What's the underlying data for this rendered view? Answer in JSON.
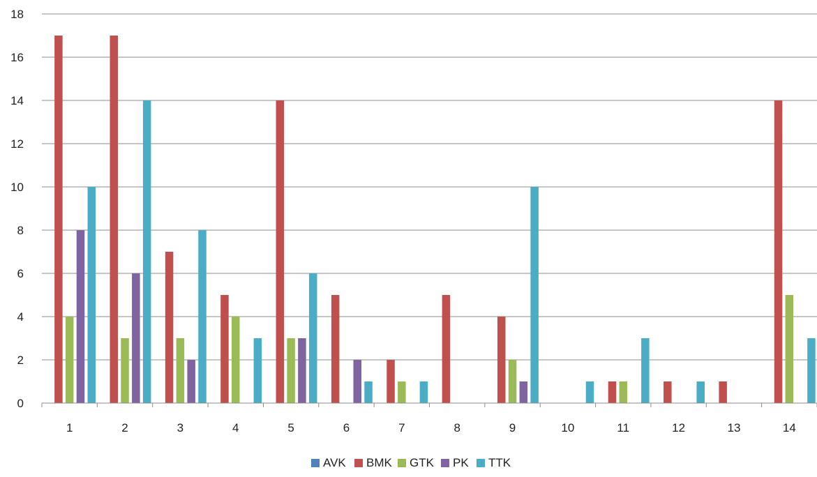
{
  "chart_data": {
    "type": "bar",
    "title": "",
    "xlabel": "",
    "ylabel": "",
    "categories": [
      "1",
      "2",
      "3",
      "4",
      "5",
      "6",
      "7",
      "8",
      "9",
      "10",
      "11",
      "12",
      "13",
      "14"
    ],
    "ylim": [
      0,
      18
    ],
    "yticks": [
      0,
      2,
      4,
      6,
      8,
      10,
      12,
      14,
      16,
      18
    ],
    "grid": "horizontal",
    "legend_position": "bottom",
    "series": [
      {
        "name": "AVK",
        "color": "#4f81bd",
        "values": [
          0,
          0,
          0,
          0,
          0,
          0,
          0,
          0,
          0,
          0,
          0,
          0,
          0,
          0
        ]
      },
      {
        "name": "BMK",
        "color": "#c0504d",
        "values": [
          17,
          17,
          7,
          5,
          14,
          5,
          2,
          5,
          4,
          0,
          1,
          1,
          1,
          14
        ]
      },
      {
        "name": "GTK",
        "color": "#9bbb59",
        "values": [
          4,
          3,
          3,
          4,
          3,
          0,
          1,
          0,
          2,
          0,
          1,
          0,
          0,
          5
        ]
      },
      {
        "name": "PK",
        "color": "#8064a2",
        "values": [
          8,
          6,
          2,
          0,
          3,
          2,
          0,
          0,
          1,
          0,
          0,
          0,
          0,
          0
        ]
      },
      {
        "name": "TTK",
        "color": "#4bacc6",
        "values": [
          10,
          14,
          8,
          3,
          6,
          1,
          1,
          0,
          10,
          1,
          3,
          1,
          0,
          3
        ]
      }
    ]
  }
}
